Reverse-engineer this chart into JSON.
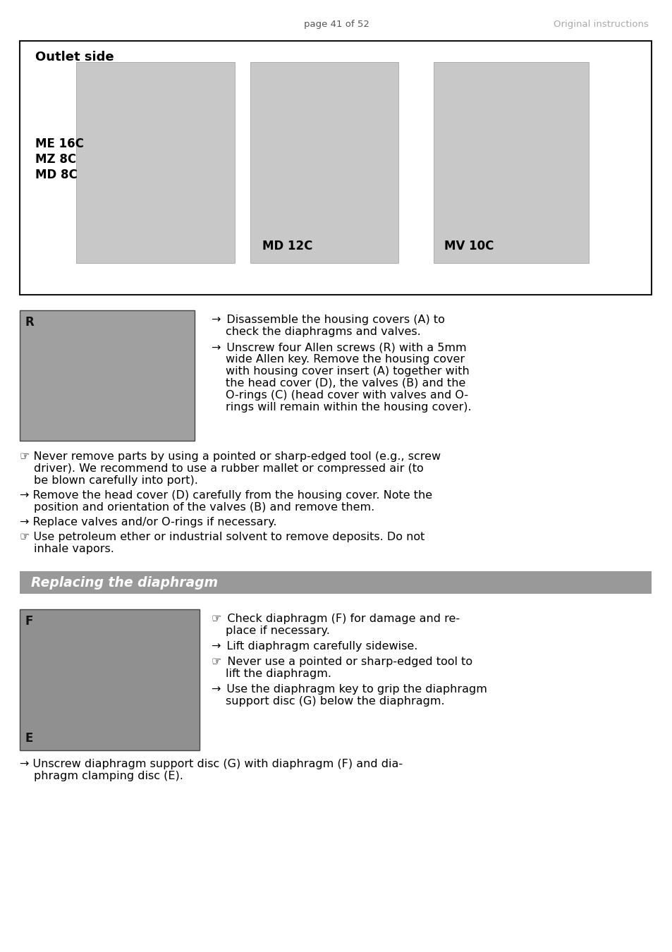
{
  "page_header_left": "page 41 of 52",
  "page_header_right": "Original instructions",
  "bg_color": "#ffffff",
  "outlet_title": "Outlet side",
  "pump_labels_col1": [
    "ME 16C",
    "MZ 8C",
    "MD 8C"
  ],
  "pump_label_col2": "MD 12C",
  "pump_label_col3": "MV 10C",
  "section_diaphragm_bg": "#999999",
  "section_diaphragm_text_color": "#ffffff",
  "section2_title": "Replacing the diaphragm",
  "image1_label": "R",
  "image2_label_top": "F",
  "image2_label_bottom": "E",
  "arrow_sym": "➜",
  "note_sym": "☞",
  "font_size_body": 11.5,
  "font_size_page": 9.5,
  "font_size_section_title": 13.5,
  "font_size_outlet_title": 13,
  "sec1_right_bullets": [
    {
      "type": "arrow",
      "text": "Disassemble the housing covers (A) to\ncheck the diaphragms and valves."
    },
    {
      "type": "arrow",
      "text": "Unscrew four Allen screws (R) with a 5mm\nwide Allen key. Remove the housing cover\nwith housing cover insert (A) together with\nthe head cover (D), the valves (B) and the\nO-rings (C) (head cover with valves and O-\nrings will remain within the housing cover)."
    }
  ],
  "sec1_full_bullets": [
    {
      "type": "note",
      "text": "Never remove parts by using a pointed or sharp-edged tool (e.g., screw\ndriver). We recommend to use a rubber mallet or compressed air (to\nbe blown carefully into port)."
    },
    {
      "type": "arrow",
      "text": "Remove the head cover (D) carefully from the housing cover. Note the\nposition and orientation of the valves (B) and remove them."
    },
    {
      "type": "arrow",
      "text": "Replace valves and/or O-rings if necessary."
    },
    {
      "type": "note",
      "text": "Use petroleum ether or industrial solvent to remove deposits. Do not\ninhale vapors."
    }
  ],
  "sec2_right_bullets": [
    {
      "type": "note",
      "text": "Check diaphragm (F) for damage and re-\nplace if necessary."
    },
    {
      "type": "arrow",
      "text": "Lift diaphragm carefully sidewise."
    },
    {
      "type": "note",
      "text": "Never use a pointed or sharp-edged tool to\nlift the diaphragm."
    },
    {
      "type": "arrow",
      "text": "Use the diaphragm key to grip the diaphragm\nsupport disc (G) below the diaphragm."
    }
  ],
  "final_bullet": "Unscrew diaphragm support disc (G) with diaphragm (F) and dia-\nphragm clamping disc (E)."
}
